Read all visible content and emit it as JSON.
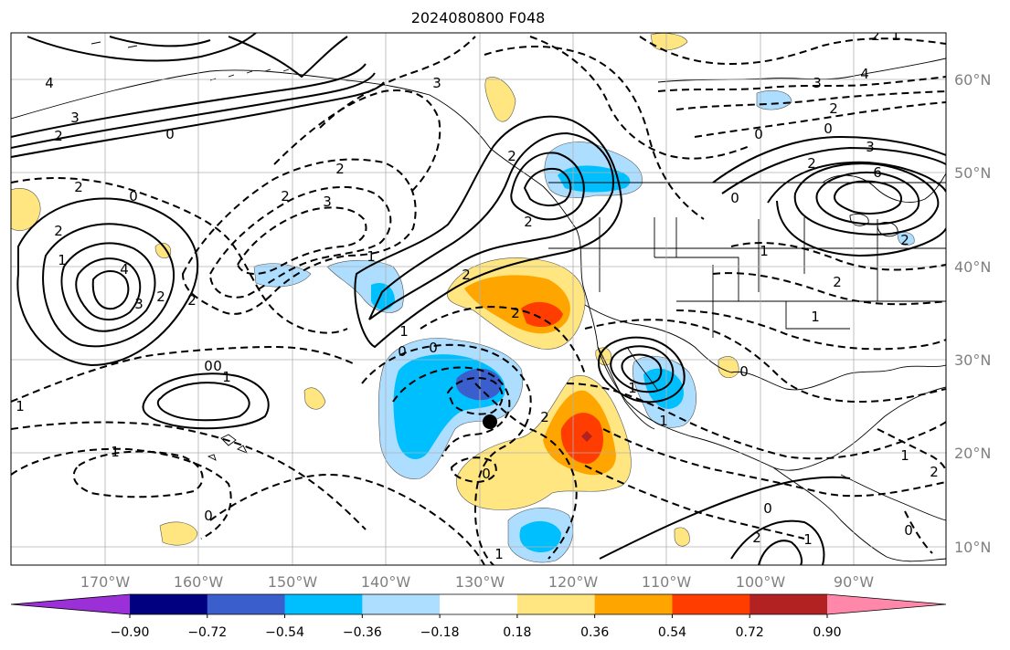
{
  "title": "2024080800 F048",
  "longitude_labels": [
    "170°W",
    "160°W",
    "150°W",
    "140°W",
    "130°W",
    "120°W",
    "110°W",
    "100°W",
    "90°W"
  ],
  "latitude_labels": [
    "60°N",
    "50°N",
    "40°N",
    "30°N",
    "20°N",
    "10°N"
  ],
  "colorbar": {
    "tick_labels": [
      "−0.90",
      "−0.72",
      "−0.54",
      "−0.36",
      "−0.18",
      "0.18",
      "0.36",
      "0.54",
      "0.72",
      "0.90"
    ],
    "colors": [
      "#9b30d8",
      "#000080",
      "#3a5fcd",
      "#00bfff",
      "#aedeff",
      "#ffffff",
      "#ffe680",
      "#ffa500",
      "#ff3d00",
      "#b22222",
      "#ff88aa"
    ]
  },
  "contour_labels": [
    "4",
    "3",
    "2",
    "0",
    "2",
    "2",
    "1",
    "4",
    "3",
    "2",
    "0",
    "0",
    "1",
    "1",
    "0",
    "2",
    "3",
    "2",
    "1",
    "0",
    "1",
    "0",
    "2",
    "2",
    "3",
    "2",
    "2",
    "0",
    "1",
    "2",
    "1",
    "1",
    "0",
    "3",
    "4",
    "2",
    "0",
    "3",
    "6",
    "2",
    "0",
    "1",
    "2",
    "0",
    "1",
    "2",
    "1",
    "2",
    "0",
    "0",
    "1",
    "2",
    "2",
    "1",
    "2",
    "1",
    "0"
  ],
  "marker": "storm-center"
}
